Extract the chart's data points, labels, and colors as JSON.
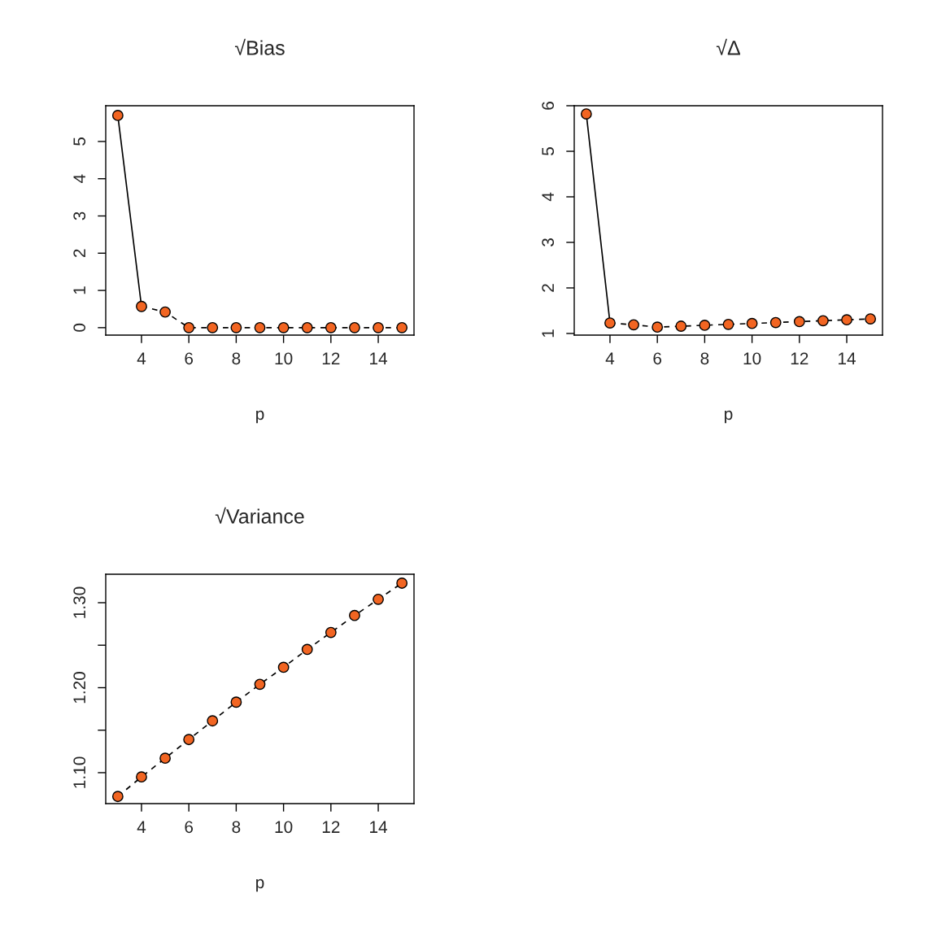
{
  "chart_data": [
    {
      "type": "line",
      "title": "√Bias",
      "xlabel": "p",
      "xlim": [
        2.49,
        15.51
      ],
      "xticks": [
        4,
        6,
        8,
        10,
        12,
        14
      ],
      "ylim": [
        -0.2,
        5.96
      ],
      "yticks": [
        0,
        1,
        2,
        3,
        4,
        5
      ],
      "grid": false,
      "legend": false,
      "series": [
        {
          "line_style": "solid",
          "color": "#000000",
          "x": [
            3,
            4
          ],
          "values": [
            5.7,
            0.57
          ]
        },
        {
          "line_style": "dashed",
          "color": "#000000",
          "x": [
            4,
            5,
            6,
            7,
            8,
            9,
            10,
            11,
            12,
            13,
            14,
            15
          ],
          "values": [
            0.57,
            0.42,
            0.0,
            0.0,
            0.0,
            0.0,
            0.0,
            0.0,
            0.0,
            0.0,
            0.0,
            0.0
          ]
        },
        {
          "type": "scatter",
          "marker": "circle",
          "color": "#f26522",
          "x": [
            3,
            4,
            5,
            6,
            7,
            8,
            9,
            10,
            11,
            12,
            13,
            14,
            15
          ],
          "values": [
            5.7,
            0.57,
            0.42,
            0.0,
            0.0,
            0.0,
            0.0,
            0.0,
            0.0,
            0.0,
            0.0,
            0.0,
            0.0
          ]
        }
      ]
    },
    {
      "type": "line",
      "title": "√Δ",
      "xlabel": "p",
      "xlim": [
        2.49,
        15.51
      ],
      "xticks": [
        4,
        6,
        8,
        10,
        12,
        14
      ],
      "ylim": [
        0.964,
        6.0
      ],
      "yticks": [
        1,
        2,
        3,
        4,
        5,
        6
      ],
      "grid": false,
      "legend": false,
      "series": [
        {
          "line_style": "solid",
          "color": "#000000",
          "x": [
            3,
            4
          ],
          "values": [
            5.82,
            1.23
          ]
        },
        {
          "line_style": "dashed",
          "color": "#000000",
          "x": [
            4,
            5,
            6,
            7,
            8,
            9,
            10,
            11,
            12,
            13,
            14,
            15
          ],
          "values": [
            1.23,
            1.19,
            1.14,
            1.16,
            1.18,
            1.2,
            1.22,
            1.24,
            1.26,
            1.28,
            1.3,
            1.32
          ]
        },
        {
          "type": "scatter",
          "marker": "circle",
          "color": "#f26522",
          "x": [
            3,
            4,
            5,
            6,
            7,
            8,
            9,
            10,
            11,
            12,
            13,
            14,
            15
          ],
          "values": [
            5.82,
            1.23,
            1.19,
            1.14,
            1.16,
            1.18,
            1.2,
            1.22,
            1.24,
            1.26,
            1.28,
            1.3,
            1.32
          ]
        }
      ]
    },
    {
      "type": "line",
      "title": "√Variance",
      "xlabel": "p",
      "xlim": [
        2.49,
        15.51
      ],
      "xticks": [
        4,
        6,
        8,
        10,
        12,
        14
      ],
      "ylim": [
        1.0636,
        1.3335
      ],
      "yticks": [
        {
          "value": 1.1,
          "label": "1.10"
        },
        {
          "value": 1.15,
          "label": null
        },
        {
          "value": 1.2,
          "label": "1.20"
        },
        {
          "value": 1.25,
          "label": null
        },
        {
          "value": 1.3,
          "label": "1.30"
        }
      ],
      "grid": false,
      "legend": false,
      "series": [
        {
          "line_style": "dashed",
          "color": "#000000",
          "x": [
            3,
            4,
            5,
            6,
            7,
            8,
            9,
            10,
            11,
            12,
            13,
            14,
            15
          ],
          "values": [
            1.072,
            1.095,
            1.117,
            1.139,
            1.161,
            1.183,
            1.204,
            1.224,
            1.245,
            1.265,
            1.285,
            1.304,
            1.323
          ]
        },
        {
          "type": "scatter",
          "marker": "circle",
          "color": "#f26522",
          "x": [
            3,
            4,
            5,
            6,
            7,
            8,
            9,
            10,
            11,
            12,
            13,
            14,
            15
          ],
          "values": [
            1.072,
            1.095,
            1.117,
            1.139,
            1.161,
            1.183,
            1.204,
            1.224,
            1.245,
            1.265,
            1.285,
            1.304,
            1.323
          ]
        }
      ]
    }
  ]
}
